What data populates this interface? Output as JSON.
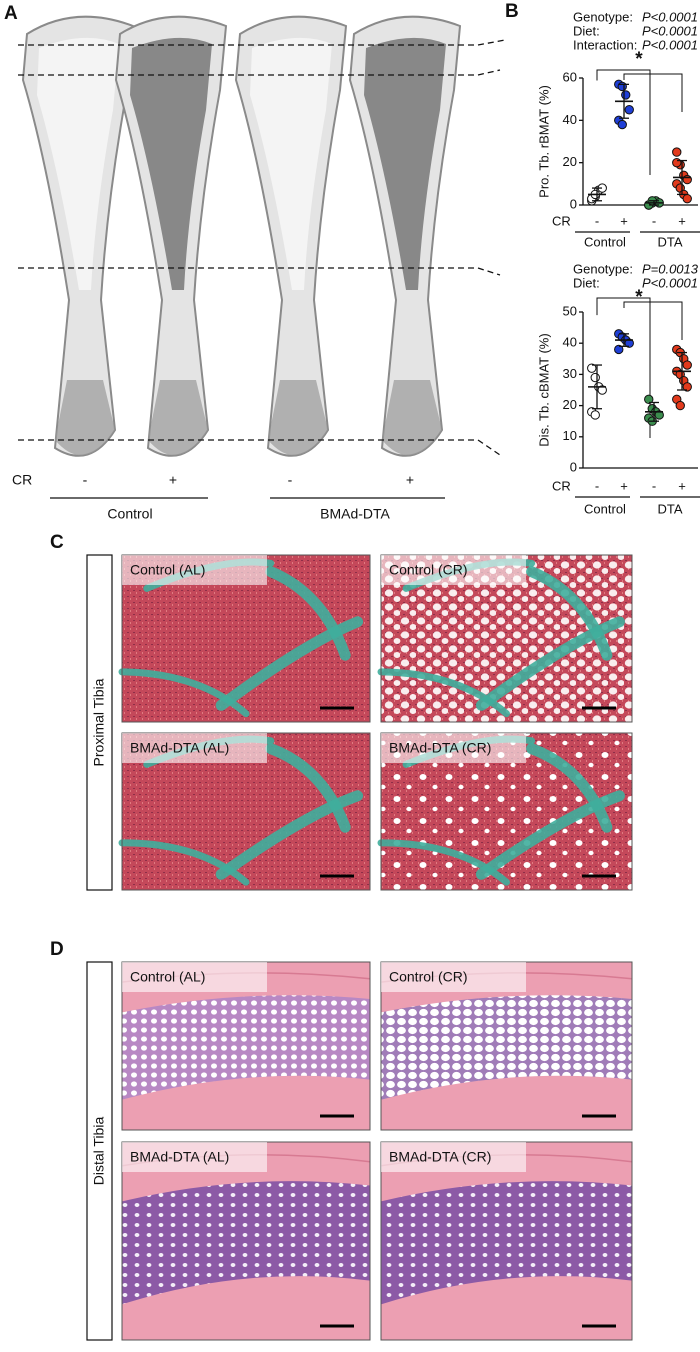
{
  "panel_a": {
    "label": "A",
    "cr_label": "CR",
    "cr_signs": [
      "-",
      "+",
      "-",
      "+"
    ],
    "groups": [
      "Control",
      "BMAd-DTA"
    ]
  },
  "panel_b_label": "B",
  "chart_data": [
    {
      "type": "dot",
      "stats": [
        {
          "name": "Genotype:",
          "value": "P<0.0001"
        },
        {
          "name": "Diet:",
          "value": "P<0.0001"
        },
        {
          "name": "Interaction:",
          "value": "P<0.0001"
        }
      ],
      "ylabel": "Pro. Tb. rBMAT (%)",
      "ylim": [
        0,
        60
      ],
      "yticks": [
        0,
        20,
        40,
        60
      ],
      "cr_label": "CR",
      "categories": [
        "-",
        "+",
        "-",
        "+"
      ],
      "groups": [
        "Control",
        "DTA"
      ],
      "significance": "*",
      "colors": [
        "#ffffff",
        "#1f3fd6",
        "#3b8d4e",
        "#e23a1c"
      ],
      "points": [
        [
          2,
          4,
          7,
          8,
          3,
          5
        ],
        [
          57,
          56,
          52,
          45,
          40,
          38
        ],
        [
          0,
          1,
          2,
          1,
          0,
          2
        ],
        [
          25,
          19,
          14,
          12,
          10,
          8,
          5,
          3,
          20
        ]
      ],
      "means": [
        5,
        49,
        1,
        13
      ],
      "sd": [
        3,
        8,
        1,
        8
      ]
    },
    {
      "type": "dot",
      "stats": [
        {
          "name": "Genotype:",
          "value": "P=0.0013"
        },
        {
          "name": "Diet:",
          "value": "P<0.0001"
        }
      ],
      "ylabel": "Dis. Tb. cBMAT (%)",
      "ylim": [
        0,
        50
      ],
      "yticks": [
        0,
        10,
        20,
        30,
        40,
        50
      ],
      "cr_label": "CR",
      "categories": [
        "-",
        "+",
        "-",
        "+"
      ],
      "groups": [
        "Control",
        "DTA"
      ],
      "significance": "*",
      "colors": [
        "#ffffff",
        "#1f3fd6",
        "#3b8d4e",
        "#e23a1c"
      ],
      "points": [
        [
          32,
          29,
          26,
          25,
          18,
          17
        ],
        [
          43,
          42,
          41,
          40,
          38
        ],
        [
          22,
          19,
          18,
          17,
          16,
          15
        ],
        [
          38,
          37,
          35,
          33,
          31,
          30,
          28,
          26,
          22,
          20
        ]
      ],
      "means": [
        26,
        41,
        18,
        31
      ],
      "sd": [
        7,
        2,
        3,
        6
      ]
    }
  ],
  "panel_c": {
    "label": "C",
    "region": "Proximal Tibia",
    "images": [
      "Control (AL)",
      "Control (CR)",
      "BMAd-DTA (AL)",
      "BMAd-DTA (CR)"
    ]
  },
  "panel_d": {
    "label": "D",
    "region": "Distal Tibia",
    "images": [
      "Control (AL)",
      "Control (CR)",
      "BMAd-DTA (AL)",
      "BMAd-DTA (CR)"
    ]
  }
}
